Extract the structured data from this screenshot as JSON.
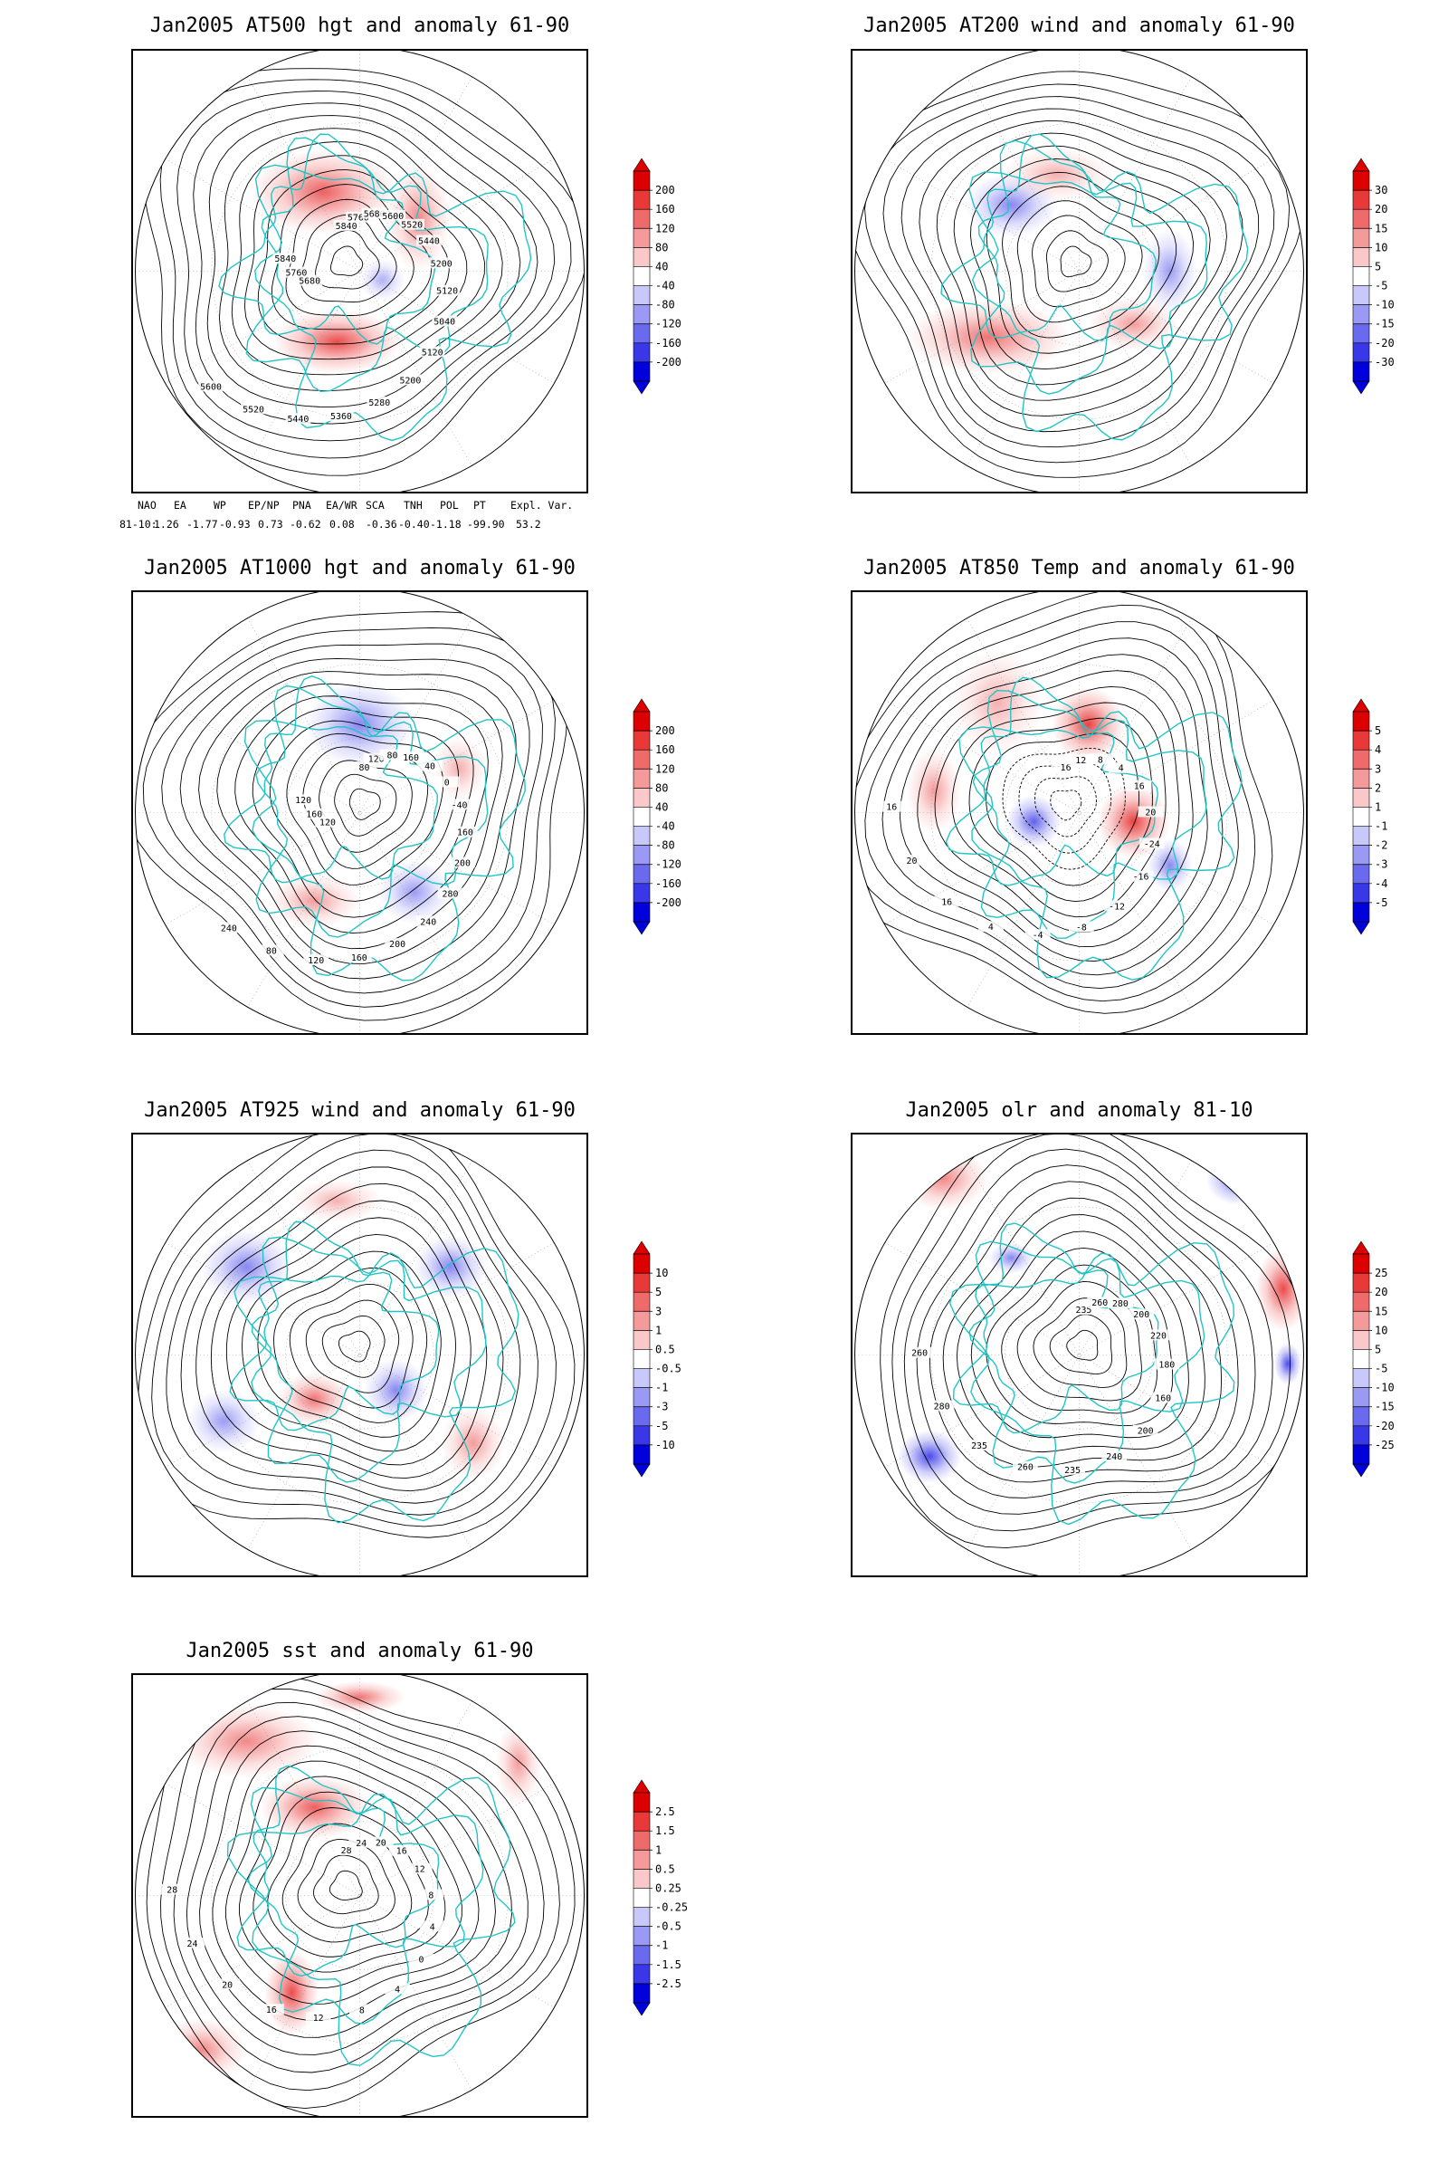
{
  "panels": [
    {
      "id": "p1",
      "title": "Jan2005 AT500 hgt and anomaly 61-90",
      "colorbar": {
        "labels": [
          "200",
          "160",
          "120",
          "80",
          "40",
          "-40",
          "-80",
          "-120",
          "-160",
          "-200"
        ],
        "colors": [
          "#dd0000",
          "#e83838",
          "#ef6a6a",
          "#f59a9a",
          "#fac8c8",
          "#ffffff",
          "#c8c8fa",
          "#9a9af5",
          "#6a6aef",
          "#3838e8",
          "#0000dd"
        ]
      },
      "contour_labels": [
        "5840",
        "5760",
        "5680",
        "5600",
        "5520",
        "5440",
        "5200",
        "5120",
        "5040",
        "5120",
        "5200",
        "5280",
        "5360",
        "5440",
        "5520",
        "5600",
        "5680",
        "5760",
        "5840"
      ]
    },
    {
      "id": "p2",
      "title": "Jan2005 AT200 wind and anomaly 61-90",
      "colorbar": {
        "labels": [
          "30",
          "20",
          "15",
          "10",
          "5",
          "-5",
          "-10",
          "-15",
          "-20",
          "-30"
        ],
        "colors": [
          "#dd0000",
          "#e83838",
          "#ef6a6a",
          "#f59a9a",
          "#fac8c8",
          "#ffffff",
          "#c8c8fa",
          "#9a9af5",
          "#6a6aef",
          "#3838e8",
          "#0000dd"
        ]
      },
      "contour_labels": []
    },
    {
      "id": "p3",
      "title": "Jan2005 AT1000 hgt and anomaly 61-90",
      "colorbar": {
        "labels": [
          "200",
          "160",
          "120",
          "80",
          "40",
          "-40",
          "-80",
          "-120",
          "-160",
          "-200"
        ],
        "colors": [
          "#dd0000",
          "#e83838",
          "#ef6a6a",
          "#f59a9a",
          "#fac8c8",
          "#ffffff",
          "#c8c8fa",
          "#9a9af5",
          "#6a6aef",
          "#3838e8",
          "#0000dd"
        ]
      },
      "contour_labels": [
        "80",
        "120",
        "80",
        "160",
        "40",
        "0",
        "-40",
        "160",
        "200",
        "280",
        "240",
        "200",
        "160",
        "120",
        "80",
        "240",
        "120",
        "160",
        "120"
      ]
    },
    {
      "id": "p4",
      "title": "Jan2005 AT850 Temp and anomaly 61-90",
      "colorbar": {
        "labels": [
          "5",
          "4",
          "3",
          "2",
          "1",
          "-1",
          "-2",
          "-3",
          "-4",
          "-5"
        ],
        "colors": [
          "#dd0000",
          "#e83838",
          "#ef6a6a",
          "#f59a9a",
          "#fac8c8",
          "#ffffff",
          "#c8c8fa",
          "#9a9af5",
          "#6a6aef",
          "#3838e8",
          "#0000dd"
        ]
      },
      "contour_labels": [
        "16",
        "12",
        "8",
        "4",
        "16",
        "20",
        "-24",
        "-16",
        "-12",
        "-8",
        "-4",
        "4",
        "16",
        "20",
        "16"
      ]
    },
    {
      "id": "p5",
      "title": "Jan2005 AT925 wind and anomaly 61-90",
      "colorbar": {
        "labels": [
          "10",
          "5",
          "3",
          "1",
          "0.5",
          "-0.5",
          "-1",
          "-3",
          "-5",
          "-10"
        ],
        "colors": [
          "#dd0000",
          "#e83838",
          "#ef6a6a",
          "#f59a9a",
          "#fac8c8",
          "#ffffff",
          "#c8c8fa",
          "#9a9af5",
          "#6a6aef",
          "#3838e8",
          "#0000dd"
        ]
      },
      "contour_labels": []
    },
    {
      "id": "p6",
      "title": "Jan2005 olr and anomaly 81-10",
      "colorbar": {
        "labels": [
          "25",
          "20",
          "15",
          "10",
          "5",
          "-5",
          "-10",
          "-15",
          "-20",
          "-25"
        ],
        "colors": [
          "#dd0000",
          "#e83838",
          "#ef6a6a",
          "#f59a9a",
          "#fac8c8",
          "#ffffff",
          "#c8c8fa",
          "#9a9af5",
          "#6a6aef",
          "#3838e8",
          "#0000dd"
        ]
      },
      "contour_labels": [
        "235",
        "260",
        "280",
        "200",
        "220",
        "180",
        "160",
        "200",
        "240",
        "235",
        "260",
        "235",
        "280",
        "260"
      ]
    },
    {
      "id": "p7",
      "title": "Jan2005 sst and anomaly 61-90",
      "colorbar": {
        "labels": [
          "2.5",
          "1.5",
          "1",
          "0.5",
          "0.25",
          "-0.25",
          "-0.5",
          "-1",
          "-1.5",
          "-2.5"
        ],
        "colors": [
          "#dd0000",
          "#e83838",
          "#ef6a6a",
          "#f59a9a",
          "#fac8c8",
          "#ffffff",
          "#c8c8fa",
          "#9a9af5",
          "#6a6aef",
          "#3838e8",
          "#0000dd"
        ]
      },
      "contour_labels": [
        "28",
        "24",
        "20",
        "16",
        "12",
        "8",
        "4",
        "0",
        "4",
        "8",
        "12",
        "16",
        "20",
        "24",
        "28"
      ]
    }
  ],
  "indices": {
    "headers": [
      "NAO",
      "EA",
      "WP",
      "EP/NP",
      "PNA",
      "EA/WR",
      "SCA",
      "TNH",
      "POL",
      "PT",
      "Expl. Var."
    ],
    "row_label": "81-10:",
    "values": [
      "1.26",
      "-1.77",
      "-0.93",
      "0.73",
      "-0.62",
      "0.08",
      "-0.36",
      "-0.40",
      "-1.18",
      "-99.90",
      "53.2"
    ]
  },
  "colors": {
    "coastline": "#22c4c4",
    "contour": "#000000",
    "positive": "#dd0000",
    "negative": "#0000dd"
  }
}
